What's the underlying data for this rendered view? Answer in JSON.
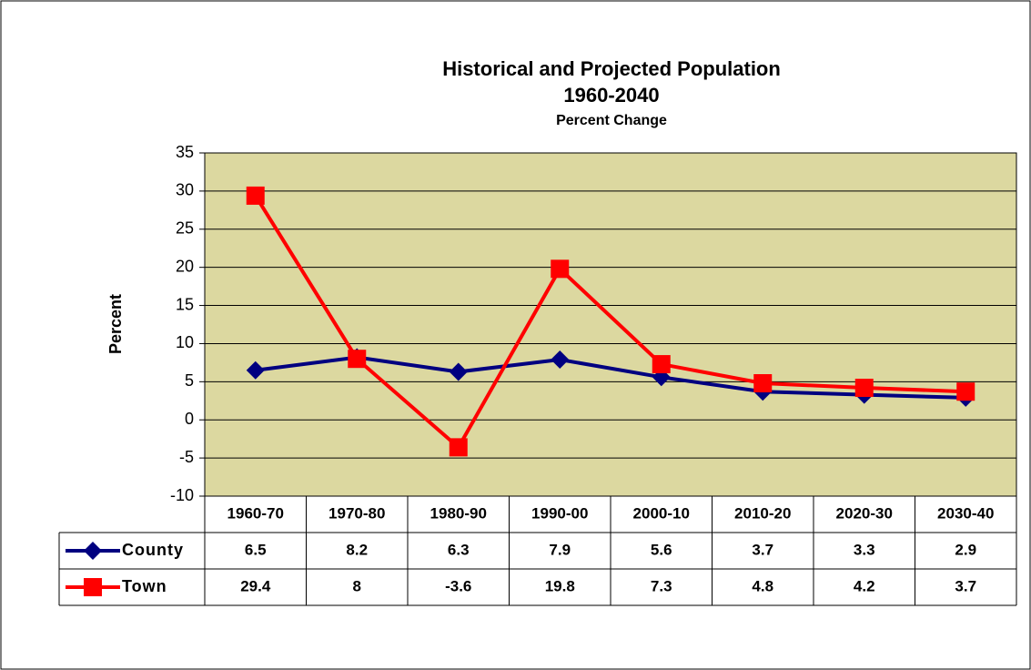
{
  "chart_data": {
    "type": "line",
    "title": "Historical and Projected Population",
    "subtitle": "1960-2040",
    "caption": "Percent Change",
    "y_label": "Percent",
    "categories": [
      "1960-70",
      "1970-80",
      "1980-90",
      "1990-00",
      "2000-10",
      "2010-20",
      "2020-30",
      "2030-40"
    ],
    "series": [
      {
        "name": "County",
        "color": "#000080",
        "marker": "diamond",
        "values": [
          6.5,
          8.2,
          6.3,
          7.9,
          5.6,
          3.7,
          3.3,
          2.9
        ]
      },
      {
        "name": "Town",
        "color": "#ff0000",
        "marker": "square",
        "values": [
          29.4,
          8,
          -3.6,
          19.8,
          7.3,
          4.8,
          4.2,
          3.7
        ]
      }
    ],
    "ylim": [
      -10,
      35
    ],
    "yticks": [
      -10,
      -5,
      0,
      5,
      10,
      15,
      20,
      25,
      30,
      35
    ],
    "grid": true,
    "plot_background": "#dcd8a0"
  }
}
